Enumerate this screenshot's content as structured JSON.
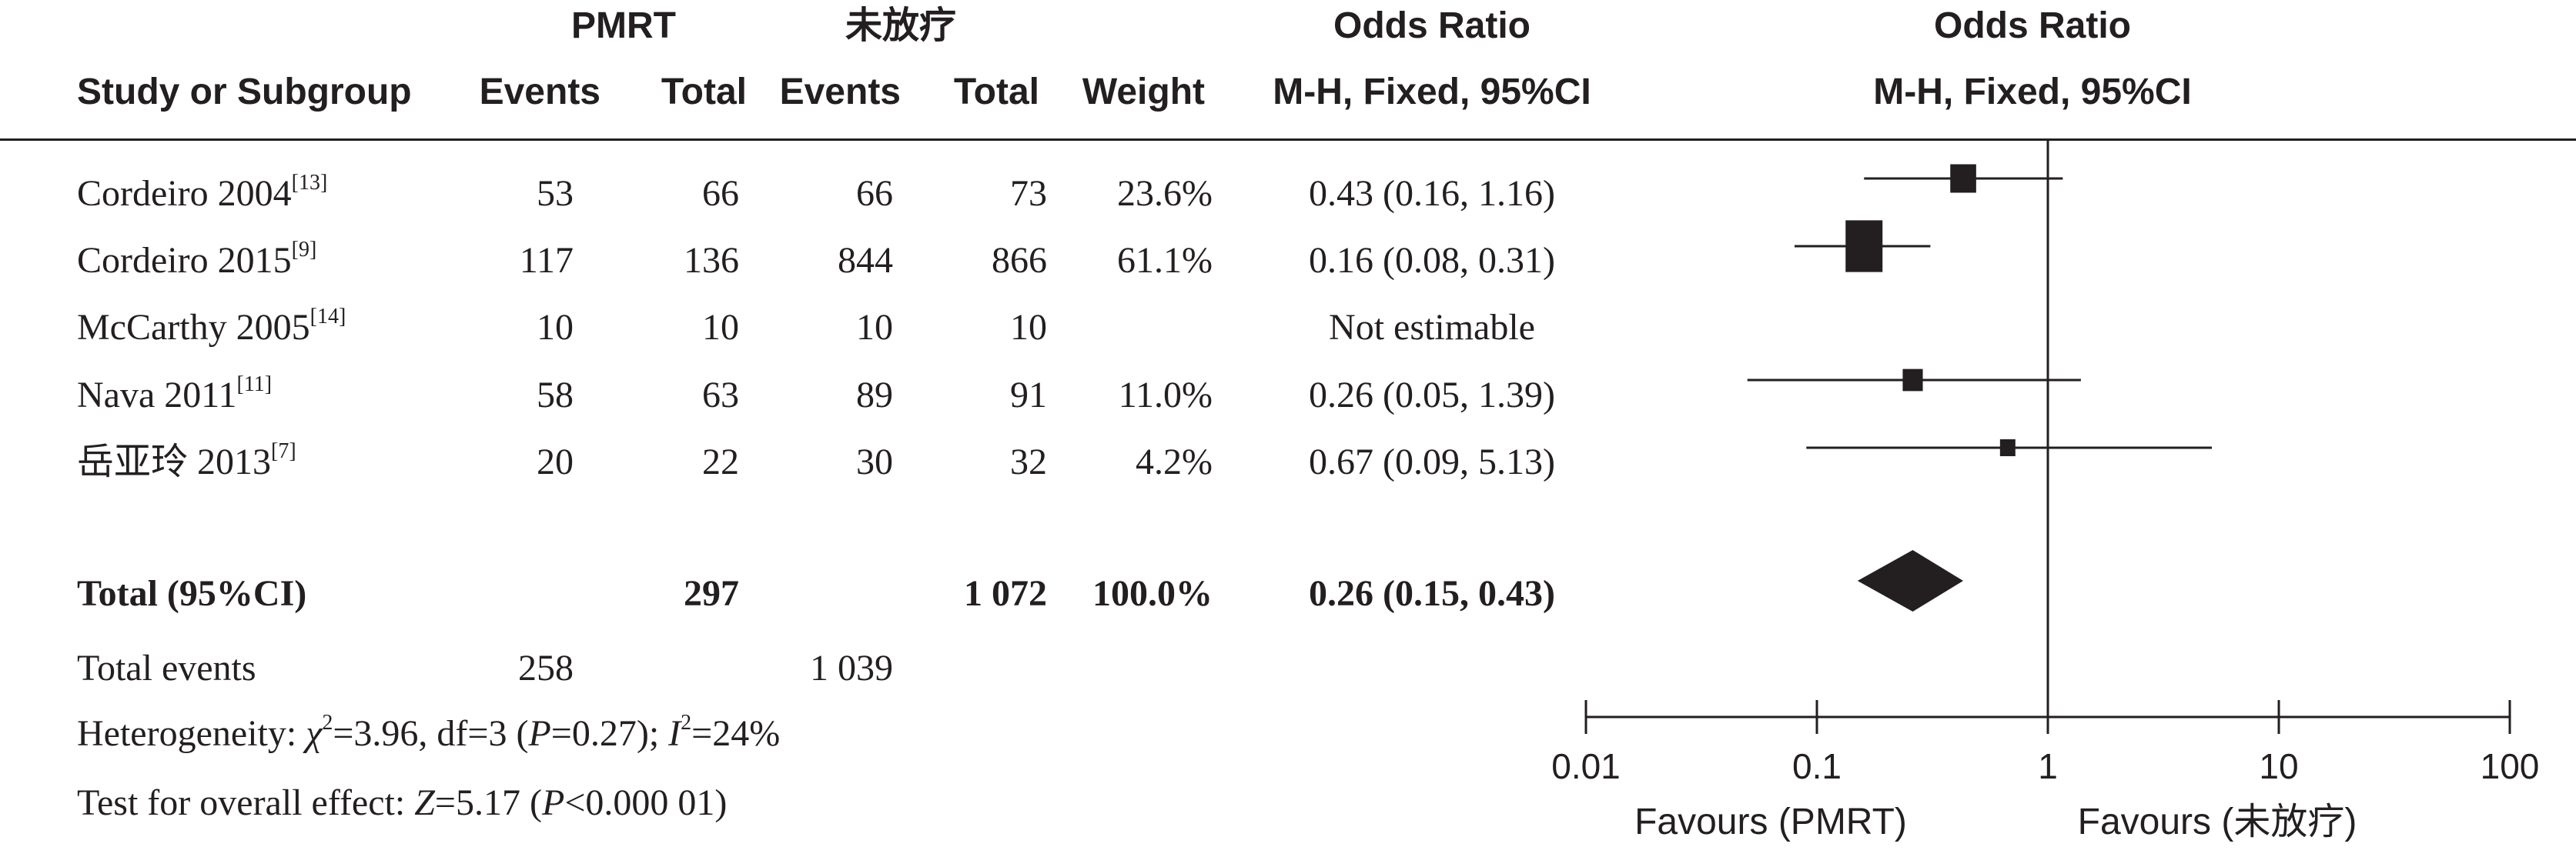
{
  "header": {
    "group1": "PMRT",
    "group2": "未放疗",
    "or_title": "Odds Ratio",
    "or_method": "M-H, Fixed, 95%CI",
    "plot_title": "Odds Ratio",
    "plot_method": "M-H, Fixed, 95%CI",
    "col_study": "Study or Subgroup",
    "col_events1": "Events",
    "col_total1": "Total",
    "col_events2": "Events",
    "col_total2": "Total",
    "col_weight": "Weight"
  },
  "studies": [
    {
      "name": "Cordeiro 2004",
      "ref": "[13]",
      "events1": "53",
      "total1": "66",
      "events2": "66",
      "total2": "73",
      "weight": "23.6%",
      "ci_text": "0.43 (0.16, 1.16)"
    },
    {
      "name": "Cordeiro 2015",
      "ref": "[9]",
      "events1": "117",
      "total1": "136",
      "events2": "844",
      "total2": "866",
      "weight": "61.1%",
      "ci_text": "0.16 (0.08, 0.31)"
    },
    {
      "name": "McCarthy 2005",
      "ref": "[14]",
      "events1": "10",
      "total1": "10",
      "events2": "10",
      "total2": "10",
      "weight": "",
      "ci_text": "Not estimable"
    },
    {
      "name": "Nava 2011",
      "ref": "[11]",
      "events1": "58",
      "total1": "63",
      "events2": "89",
      "total2": "91",
      "weight": "11.0%",
      "ci_text": "0.26 (0.05, 1.39)"
    },
    {
      "name": "岳亚玲 2013",
      "ref": "[7]",
      "events1": "20",
      "total1": "22",
      "events2": "30",
      "total2": "32",
      "weight": "4.2%",
      "ci_text": "0.67 (0.09, 5.13)"
    }
  ],
  "total": {
    "label": "Total (95%CI)",
    "total1": "297",
    "total2": "1 072",
    "weight": "100.0%",
    "ci_text": "0.26 (0.15, 0.43)"
  },
  "total_events": {
    "label": "Total events",
    "events1": "258",
    "events2": "1 039"
  },
  "heterogeneity": {
    "prefix": "Heterogeneity: ",
    "chi_sym": "χ",
    "chi_sup": "2",
    "chi_val": "=3.96, df=3 (",
    "p_sym": "P",
    "p_val": "=0.27); ",
    "i_sym": "I",
    "i_sup": "2",
    "i_val": "=24%"
  },
  "overall": {
    "prefix": "Test for overall effect: ",
    "z_sym": "Z",
    "z_val": "=5.17 (",
    "p_sym": "P",
    "p_val": "<0.000 01)"
  },
  "axis": {
    "favours_left": "Favours (PMRT)",
    "favours_right": "Favours (未放疗)"
  },
  "chart_data": {
    "type": "forest",
    "scale": "log",
    "xlim": [
      0.01,
      100
    ],
    "ticks": [
      0.01,
      0.1,
      1,
      10,
      100
    ],
    "tick_labels": [
      "0.01",
      "0.1",
      "1",
      "10",
      "100"
    ],
    "null_line": 1,
    "studies": [
      {
        "name": "Cordeiro 2004",
        "or": 0.43,
        "lo": 0.16,
        "hi": 1.16,
        "weight": 23.6
      },
      {
        "name": "Cordeiro 2015",
        "or": 0.16,
        "lo": 0.08,
        "hi": 0.31,
        "weight": 61.1
      },
      {
        "name": "McCarthy 2005",
        "or": null,
        "lo": null,
        "hi": null,
        "weight": null
      },
      {
        "name": "Nava 2011",
        "or": 0.26,
        "lo": 0.05,
        "hi": 1.39,
        "weight": 11.0
      },
      {
        "name": "岳亚玲 2013",
        "or": 0.67,
        "lo": 0.09,
        "hi": 5.13,
        "weight": 4.2
      }
    ],
    "pooled": {
      "or": 0.26,
      "lo": 0.15,
      "hi": 0.43
    }
  }
}
